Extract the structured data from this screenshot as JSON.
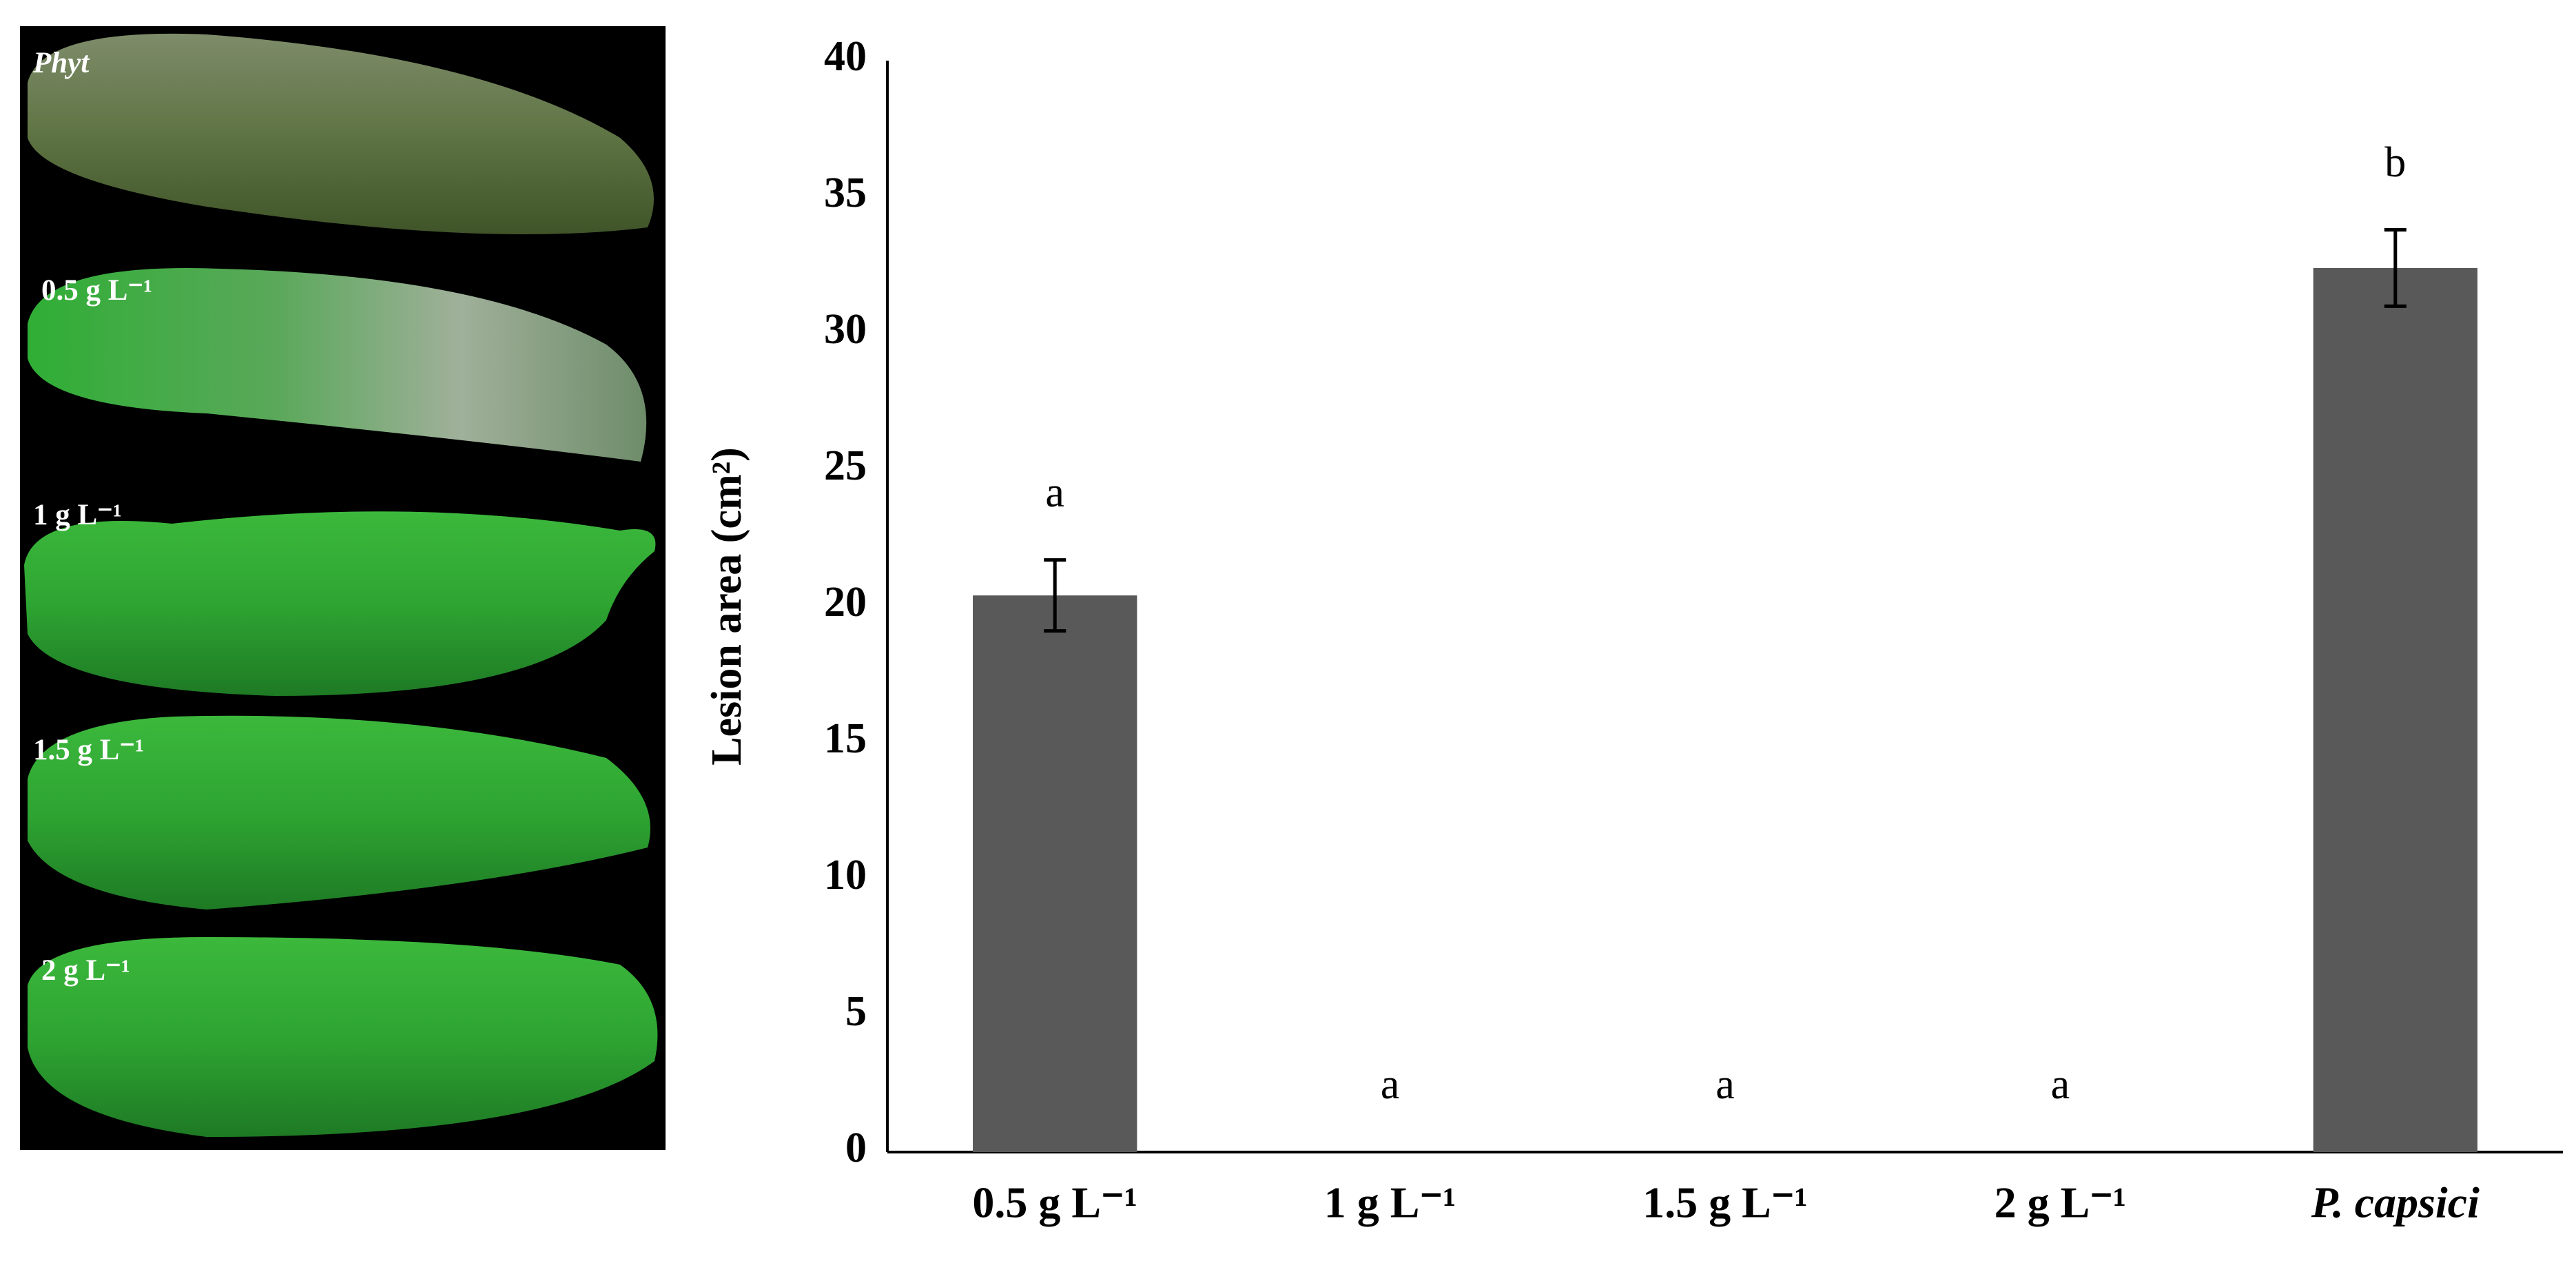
{
  "photo_labels": [
    "Phyt",
    "0.5 g L⁻¹",
    "1 g L⁻¹",
    "1.5 g L⁻¹",
    "2 g L⁻¹"
  ],
  "chart_data": {
    "type": "bar",
    "y_label": "Lesion area (cm²)",
    "categories": [
      "0.5 g L⁻¹",
      "1 g L⁻¹",
      "1.5 g L⁻¹",
      "2 g L⁻¹",
      "P. capsici"
    ],
    "values": [
      20.4,
      0,
      0,
      0,
      32.4
    ],
    "errors": [
      1.3,
      null,
      null,
      null,
      1.4
    ],
    "letters": [
      "a",
      "a",
      "a",
      "a",
      "b"
    ],
    "color": "#595959",
    "ylim": [
      0,
      40
    ],
    "yticks": [
      0,
      5,
      10,
      15,
      20,
      25,
      30,
      35,
      40
    ],
    "grid": false
  }
}
